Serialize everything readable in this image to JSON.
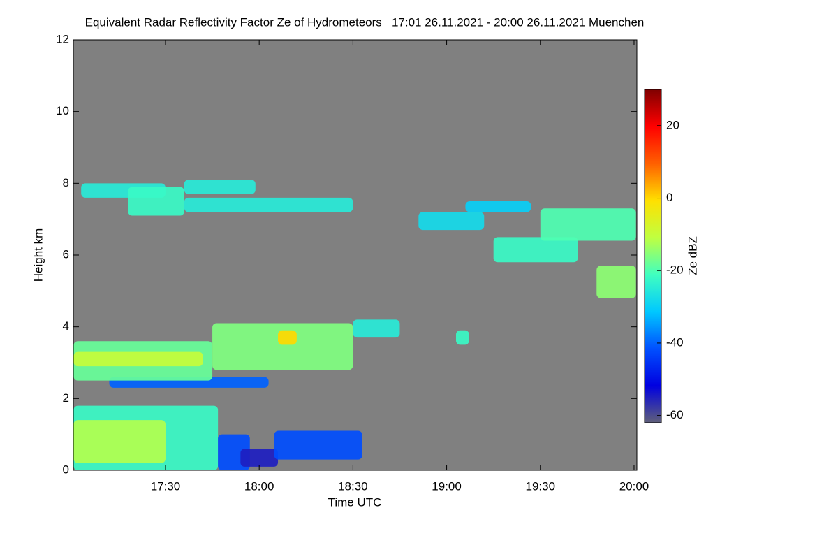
{
  "chart_data": {
    "type": "heatmap",
    "title": "Equivalent Radar Reflectivity Factor Ze of Hydrometeors   17:01 26.11.2021 - 20:00 26.11.2021 Muenchen",
    "x_label": "Time UTC",
    "y_label": "Height km",
    "colorbar_label": "Ze dBZ",
    "xlim": [
      17.0083,
      20.015
    ],
    "ylim": [
      0,
      12
    ],
    "zlim": [
      -62,
      30
    ],
    "xticks": [
      {
        "value": 17.5,
        "label": "17:30"
      },
      {
        "value": 18,
        "label": "18:00"
      },
      {
        "value": 18.5,
        "label": "18:30"
      },
      {
        "value": 19,
        "label": "19:00"
      },
      {
        "value": 19.5,
        "label": "19:30"
      },
      {
        "value": 20,
        "label": "20:00"
      }
    ],
    "yticks": [
      0,
      2,
      4,
      6,
      8,
      10,
      12
    ],
    "zticks": [
      -60,
      -40,
      -20,
      0,
      20
    ],
    "background": "#808080",
    "colormap": [
      "#60607a",
      "#0000e0",
      "#0050ff",
      "#00c8ff",
      "#40ffc0",
      "#c0ff40",
      "#ffe000",
      "#ff6000",
      "#ff0000",
      "#800000"
    ],
    "cells": [
      {
        "t0": 17.01,
        "t1": 17.78,
        "h0": 0,
        "h1": 1.8,
        "z": -22
      },
      {
        "t0": 17.01,
        "t1": 17.5,
        "h0": 0.2,
        "h1": 1.4,
        "z": -12
      },
      {
        "t0": 17.78,
        "t1": 17.95,
        "h0": 0,
        "h1": 1.0,
        "z": -42
      },
      {
        "t0": 17.9,
        "t1": 18.1,
        "h0": 0.1,
        "h1": 0.6,
        "z": -55
      },
      {
        "t0": 18.08,
        "t1": 18.55,
        "h0": 0.3,
        "h1": 1.1,
        "z": -42
      },
      {
        "t0": 17.2,
        "t1": 18.05,
        "h0": 2.3,
        "h1": 2.6,
        "z": -40
      },
      {
        "t0": 17.01,
        "t1": 17.75,
        "h0": 2.5,
        "h1": 3.6,
        "z": -18
      },
      {
        "t0": 17.01,
        "t1": 17.7,
        "h0": 2.9,
        "h1": 3.3,
        "z": -10
      },
      {
        "t0": 17.75,
        "t1": 18.5,
        "h0": 2.8,
        "h1": 4.1,
        "z": -16
      },
      {
        "t0": 18.1,
        "t1": 18.2,
        "h0": 3.5,
        "h1": 3.9,
        "z": 0
      },
      {
        "t0": 18.5,
        "t1": 18.75,
        "h0": 3.7,
        "h1": 4.2,
        "z": -25
      },
      {
        "t0": 19.05,
        "t1": 19.12,
        "h0": 3.5,
        "h1": 3.9,
        "z": -22
      },
      {
        "t0": 17.05,
        "t1": 17.5,
        "h0": 7.6,
        "h1": 8.0,
        "z": -25
      },
      {
        "t0": 17.3,
        "t1": 17.6,
        "h0": 7.1,
        "h1": 7.9,
        "z": -22
      },
      {
        "t0": 17.6,
        "t1": 17.98,
        "h0": 7.7,
        "h1": 8.1,
        "z": -25
      },
      {
        "t0": 17.6,
        "t1": 18.5,
        "h0": 7.2,
        "h1": 7.6,
        "z": -25
      },
      {
        "t0": 18.85,
        "t1": 19.2,
        "h0": 6.7,
        "h1": 7.2,
        "z": -28
      },
      {
        "t0": 19.1,
        "t1": 19.45,
        "h0": 7.2,
        "h1": 7.5,
        "z": -30
      },
      {
        "t0": 19.25,
        "t1": 19.7,
        "h0": 5.8,
        "h1": 6.5,
        "z": -22
      },
      {
        "t0": 19.5,
        "t1": 20.01,
        "h0": 6.4,
        "h1": 7.3,
        "z": -20
      },
      {
        "t0": 19.8,
        "t1": 20.01,
        "h0": 4.8,
        "h1": 5.7,
        "z": -15
      }
    ]
  }
}
